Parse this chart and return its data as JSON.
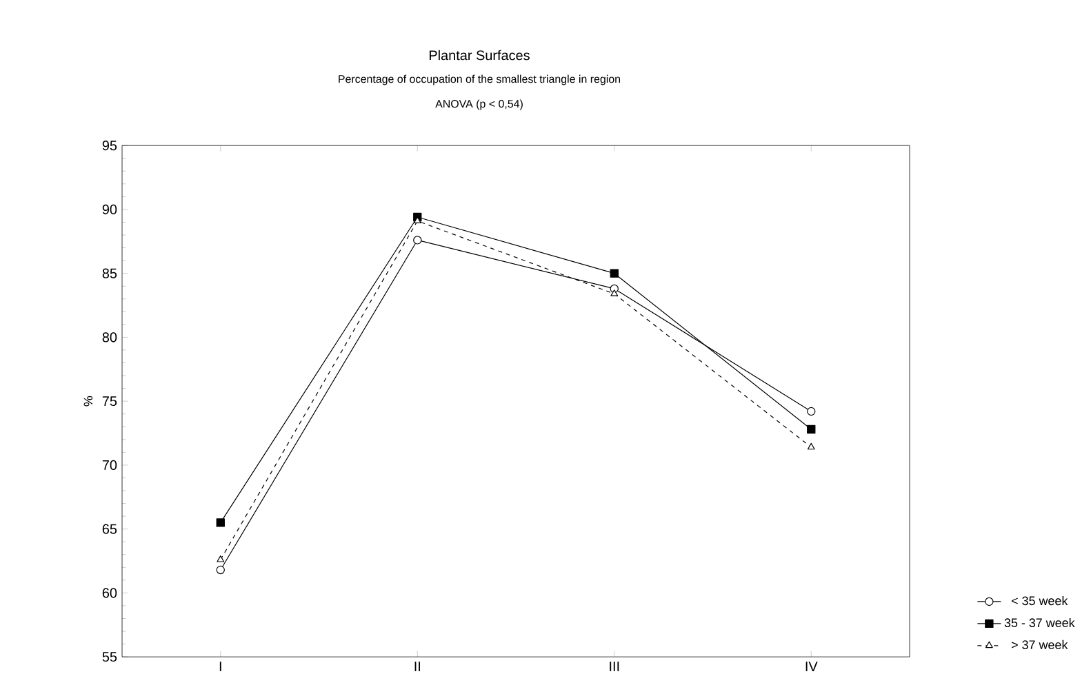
{
  "chart_data": {
    "type": "line",
    "title": "Plantar Surfaces",
    "subtitle": "Percentage of occupation of the smallest triangle in region",
    "annotations": [
      "ANOVA (p < 0,54)"
    ],
    "ylabel": "%",
    "categories": [
      "I",
      "II",
      "III",
      "IV"
    ],
    "series": [
      {
        "name": "< 35 week",
        "color": "#000000",
        "marker": "circle",
        "line_style": "solid",
        "values": [
          61.8,
          87.6,
          83.8,
          74.2
        ]
      },
      {
        "name": "35 - 37 week",
        "color": "#000000",
        "marker": "square",
        "line_style": "solid",
        "values": [
          65.5,
          89.4,
          85.0,
          72.8
        ]
      },
      {
        "name": "> 37 week",
        "color": "#000000",
        "marker": "triangle",
        "line_style": "dashed",
        "values": [
          62.6,
          89.1,
          83.4,
          71.4
        ]
      }
    ],
    "ylim": [
      55,
      95
    ],
    "yticks": [
      55,
      60,
      65,
      70,
      75,
      80,
      85,
      90,
      95
    ],
    "grid": false,
    "legend": "bottom right"
  }
}
